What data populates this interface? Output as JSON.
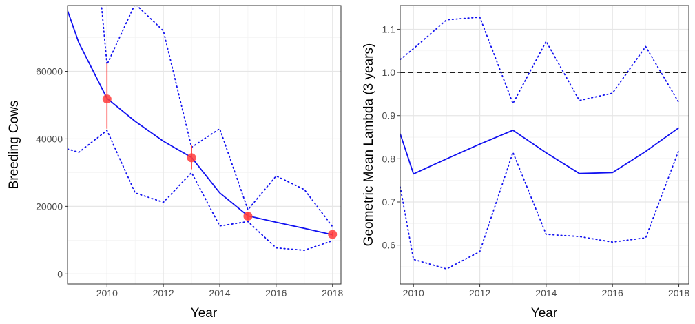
{
  "colors": {
    "line": "#1010f0",
    "points": "#ff3b3b",
    "error_bar": "#ff3b3b",
    "reference": "#000000",
    "grid_major": "#e6e6e6",
    "grid_minor": "#f3f3f3",
    "panel_border": "#333333"
  },
  "chart_data": [
    {
      "type": "line",
      "xlabel": "Year",
      "ylabel": "Breeding Cows",
      "xlim": [
        2008.6,
        2018.3
      ],
      "ylim": [
        -3000,
        79500
      ],
      "x_ticks": [
        2010,
        2012,
        2014,
        2016,
        2018
      ],
      "x_tick_labels": [
        "2010",
        "2012",
        "2014",
        "2016",
        "2018"
      ],
      "y_ticks": [
        0,
        20000,
        40000,
        60000
      ],
      "y_tick_labels": [
        "0",
        "20000",
        "40000",
        "60000"
      ],
      "grid": true,
      "series": [
        {
          "role": "estimate",
          "style": "solid",
          "x": [
            2008.6,
            2009,
            2010,
            2011,
            2012,
            2013,
            2014,
            2015,
            2016,
            2017,
            2018
          ],
          "y": [
            78000,
            68500,
            52000,
            45200,
            39300,
            34500,
            24000,
            17200,
            15300,
            13500,
            11600
          ]
        },
        {
          "role": "upper",
          "style": "dotted",
          "x": [
            2009.8,
            2010,
            2011,
            2012,
            2013,
            2014,
            2015,
            2016,
            2017,
            2018
          ],
          "y": [
            80000,
            62000,
            80000,
            72000,
            37500,
            43000,
            19000,
            29000,
            25000,
            14000
          ]
        },
        {
          "role": "lower",
          "style": "dotted",
          "x": [
            2008.6,
            2009,
            2010,
            2011,
            2012,
            2013,
            2014,
            2015,
            2016,
            2017,
            2018
          ],
          "y": [
            37000,
            36000,
            42500,
            24000,
            21200,
            30000,
            14200,
            15500,
            7700,
            7000,
            9800
          ]
        }
      ],
      "observed": {
        "x": [
          2010,
          2013,
          2015,
          2018
        ],
        "y": [
          51800,
          34400,
          17100,
          11700
        ],
        "y_low": [
          43000,
          31000,
          16000,
          11000
        ],
        "y_high": [
          62500,
          38000,
          18300,
          12500
        ]
      }
    },
    {
      "type": "line",
      "xlabel": "Year",
      "ylabel": "Geometric Mean Lambda (3 years)",
      "xlim": [
        2009.6,
        2018.3
      ],
      "ylim": [
        0.51,
        1.155
      ],
      "x_ticks": [
        2010,
        2012,
        2014,
        2016,
        2018
      ],
      "x_tick_labels": [
        "2010",
        "2012",
        "2014",
        "2016",
        "2018"
      ],
      "y_ticks": [
        0.6,
        0.7,
        0.8,
        0.9,
        1.0,
        1.1
      ],
      "y_tick_labels": [
        "0.6",
        "0.7",
        "0.8",
        "0.9",
        "1.0",
        "1.1"
      ],
      "grid": true,
      "reference_line": {
        "y": 1.0,
        "style": "dashed"
      },
      "series": [
        {
          "role": "estimate",
          "style": "solid",
          "x": [
            2009.6,
            2010,
            2011,
            2012,
            2013,
            2014,
            2015,
            2016,
            2017,
            2018
          ],
          "y": [
            0.858,
            0.765,
            0.8,
            0.834,
            0.866,
            0.814,
            0.766,
            0.768,
            0.817,
            0.872
          ]
        },
        {
          "role": "upper",
          "style": "dotted",
          "x": [
            2009.6,
            2010,
            2011,
            2012,
            2013,
            2014,
            2015,
            2016,
            2017,
            2018
          ],
          "y": [
            1.03,
            1.055,
            1.122,
            1.128,
            0.928,
            1.072,
            0.935,
            0.952,
            1.06,
            0.93
          ]
        },
        {
          "role": "lower",
          "style": "dotted",
          "x": [
            2009.6,
            2010,
            2011,
            2012,
            2013,
            2014,
            2015,
            2016,
            2017,
            2018
          ],
          "y": [
            0.735,
            0.567,
            0.545,
            0.585,
            0.815,
            0.625,
            0.62,
            0.607,
            0.617,
            0.82
          ]
        }
      ]
    }
  ]
}
